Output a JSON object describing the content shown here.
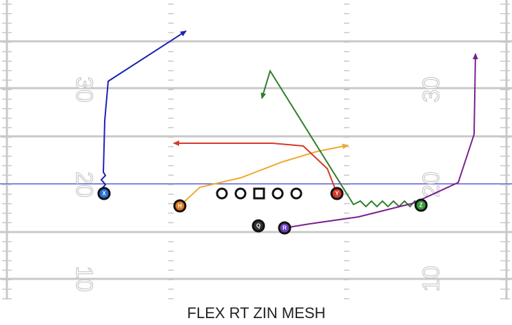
{
  "title": "FLEX RT ZIN MESH",
  "yard_numbers": [
    "30",
    "20",
    "10"
  ],
  "players": [
    {
      "label": "X"
    },
    {
      "label": "H"
    },
    {
      "label": "Q"
    },
    {
      "label": "R"
    },
    {
      "label": "Y"
    },
    {
      "label": "Z"
    }
  ]
}
